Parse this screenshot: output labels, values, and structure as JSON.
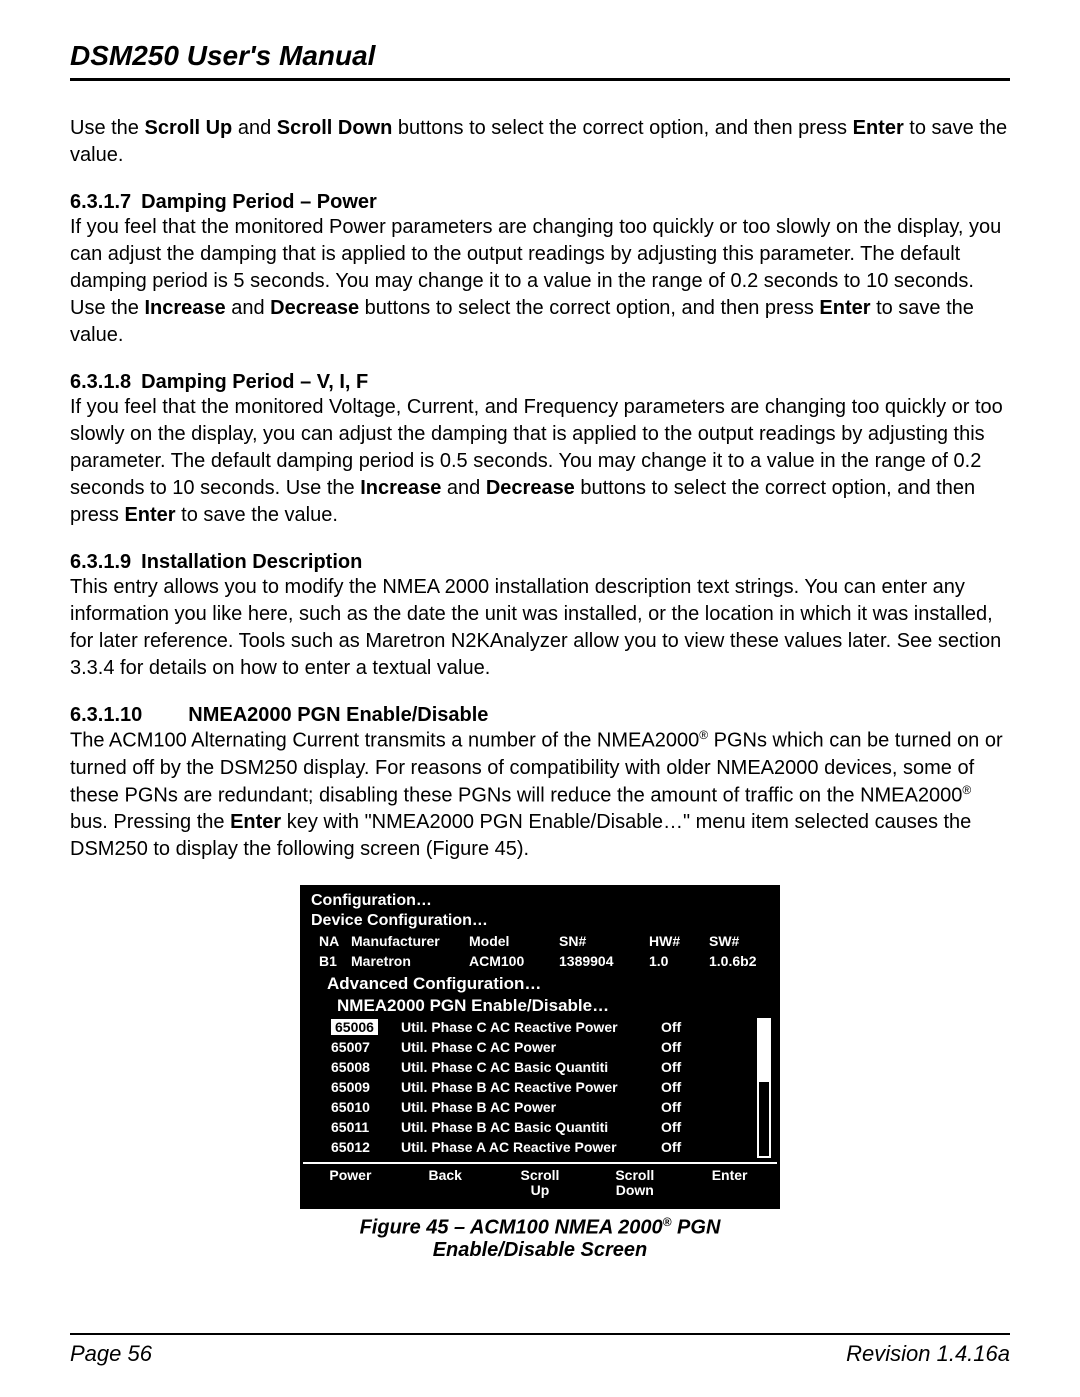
{
  "title": "DSM250 User's Manual",
  "intro_parts": {
    "t1": "Use the ",
    "b1": "Scroll Up",
    "t2": " and ",
    "b2": "Scroll Down",
    "t3": " buttons to select the correct option, and then press ",
    "b3": "Enter",
    "t4": " to save the value."
  },
  "s1": {
    "num": "6.3.1.7",
    "title": "Damping Period – Power",
    "p": {
      "t1": "If you feel that the monitored Power parameters are changing too quickly or too slowly on the display, you can adjust the damping that is applied to the output readings by adjusting this parameter. The default damping period is 5 seconds. You may change it to a value in the range of 0.2 seconds to 10 seconds. Use the ",
      "b1": "Increase",
      "t2": " and ",
      "b2": "Decrease",
      "t3": " buttons to select the correct option, and then press ",
      "b3": "Enter",
      "t4": " to save the value."
    }
  },
  "s2": {
    "num": "6.3.1.8",
    "title": "Damping Period – V, I, F",
    "p": {
      "t1": "If you feel that the monitored Voltage, Current, and Frequency parameters are changing too quickly or too slowly on the display, you can adjust the damping that is applied to the output readings by adjusting this parameter. The default damping period is 0.5 seconds. You may change it to a value in the range of 0.2 seconds to 10 seconds. Use the ",
      "b1": "Increase",
      "t2": " and ",
      "b2": "Decrease",
      "t3": " buttons to select the correct option, and then press ",
      "b3": "Enter",
      "t4": " to save the value."
    }
  },
  "s3": {
    "num": "6.3.1.9",
    "title": "Installation Description",
    "body": "This entry allows you to modify the NMEA 2000 installation description text strings.  You can enter any information you like here, such as the date the unit was installed, or the location in which it was installed, for later reference.  Tools such as Maretron N2KAnalyzer allow you to view these values later. See section 3.3.4 for details on how to enter a textual value."
  },
  "s4": {
    "num": "6.3.1.10",
    "title": "NMEA2000 PGN Enable/Disable",
    "p": {
      "t1": "The ACM100 Alternating Current transmits a number of the NMEA2000",
      "t2": " PGNs which can be turned on or turned off by the DSM250 display. For reasons of compatibility with older NMEA2000 devices, some of these PGNs are redundant; disabling these PGNs will reduce the amount of traffic on the NMEA2000",
      "t3": " bus. Pressing the ",
      "b1": "Enter",
      "t4": " key with \"NMEA2000 PGN Enable/Disable…\" menu item selected causes the DSM250 to display the following screen (Figure 45)."
    }
  },
  "device": {
    "l1": "Configuration…",
    "l2": "Device Configuration…",
    "hdr": {
      "na": "NA",
      "mfr": "Manufacturer",
      "model": "Model",
      "sn": "SN#",
      "hw": "HW#",
      "sw": "SW#"
    },
    "row": {
      "na": "B1",
      "mfr": "Maretron",
      "model": "ACM100",
      "sn": "1389904",
      "hw": "1.0",
      "sw": "1.0.6b2"
    },
    "l3": "Advanced Configuration…",
    "l4": "NMEA2000 PGN Enable/Disable…",
    "pgns": [
      {
        "id": "65006",
        "desc": "Util. Phase C AC Reactive Power",
        "state": "Off",
        "sel": true
      },
      {
        "id": "65007",
        "desc": "Util. Phase C AC Power",
        "state": "Off",
        "sel": false
      },
      {
        "id": "65008",
        "desc": "Util. Phase C AC Basic Quantiti",
        "state": "Off",
        "sel": false
      },
      {
        "id": "65009",
        "desc": "Util. Phase B AC Reactive Power",
        "state": "Off",
        "sel": false
      },
      {
        "id": "65010",
        "desc": "Util. Phase B AC Power",
        "state": "Off",
        "sel": false
      },
      {
        "id": "65011",
        "desc": "Util. Phase B AC Basic Quantiti",
        "state": "Off",
        "sel": false
      },
      {
        "id": "65012",
        "desc": "Util. Phase A AC Reactive Power",
        "state": "Off",
        "sel": false
      }
    ],
    "keys": {
      "k1": "Power",
      "k2": "Back",
      "k3": "Scroll\nUp",
      "k4": "Scroll\nDown",
      "k5": "Enter"
    }
  },
  "figcap": {
    "t1": "Figure 45 – ACM100 NMEA 2000",
    "t2": " PGN Enable/Disable Screen"
  },
  "footer": {
    "left": "Page 56",
    "right": "Revision 1.4.16a"
  }
}
